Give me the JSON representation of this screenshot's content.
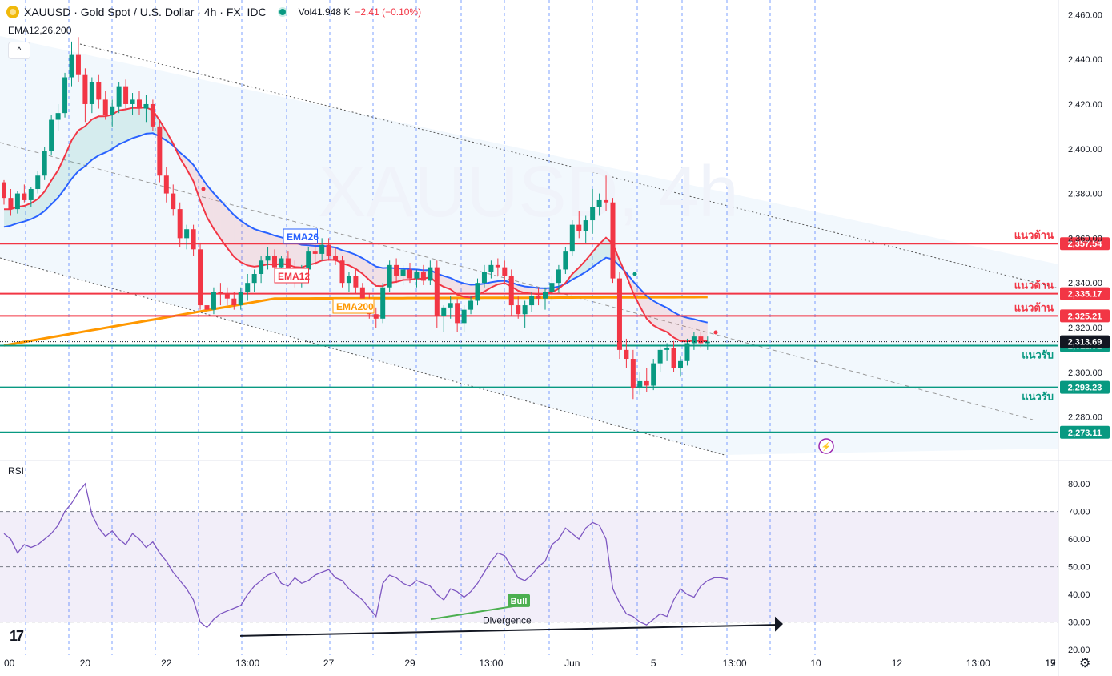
{
  "header": {
    "title": "XAUUSD · Gold Spot / U.S. Dollar · 4h · FX_IDC",
    "vol_label": "Vol",
    "vol_value": "41.948 K",
    "change": "−2.41 (−0.10%)"
  },
  "indicator_label": "EMA12,26,200",
  "collapse_glyph": "^",
  "rsi_label": "RSI",
  "logo_text": "17",
  "icons": {
    "settings": "gear-icon",
    "symbol": "gold-coin-icon",
    "flash": "lightning-icon",
    "market_status": "market-open-dot-icon"
  },
  "colors": {
    "up": "#089981",
    "down": "#f23645",
    "ema12": "#f23645",
    "ema26": "#2962ff",
    "ema200": "#ff9800",
    "resistance": "#f23645",
    "support": "#089981",
    "rsi": "#7e57c2",
    "channel": "#e3effb"
  },
  "chart_data": {
    "type": "candlestick",
    "symbol": "XAUUSD",
    "timeframe": "4h",
    "watermark": "XAUUSD, 4h",
    "price_axis": {
      "min": 2263,
      "max": 2463,
      "ticks": [
        "2,460.00",
        "2,440.00",
        "2,420.00",
        "2,400.00",
        "2,380.00",
        "2,360.00",
        "2,340.00",
        "2,320.00",
        "2,300.00",
        "2,280.00"
      ],
      "tick_values": [
        2460,
        2440,
        2420,
        2400,
        2380,
        2360,
        2340,
        2320,
        2300,
        2280
      ]
    },
    "time_axis": {
      "labels": [
        "00",
        "20",
        "22",
        "13:00",
        "27",
        "29",
        "13:00",
        "Jun",
        "5",
        "13:00",
        "10",
        "12",
        "13:00",
        "17",
        "19"
      ],
      "bars": [
        0,
        12,
        24,
        36,
        48,
        60,
        72,
        84,
        96,
        108,
        120,
        132,
        144,
        156,
        168
      ]
    },
    "current_price": "2,313.69",
    "current_value": 2313.69,
    "candles": [
      [
        2385,
        2386,
        2375,
        2378
      ],
      [
        2378,
        2382,
        2370,
        2373
      ],
      [
        2373,
        2381,
        2371,
        2380
      ],
      [
        2380,
        2384,
        2376,
        2377
      ],
      [
        2377,
        2383,
        2374,
        2382
      ],
      [
        2382,
        2390,
        2380,
        2388
      ],
      [
        2388,
        2401,
        2386,
        2399
      ],
      [
        2399,
        2415,
        2397,
        2413
      ],
      [
        2413,
        2420,
        2408,
        2416
      ],
      [
        2416,
        2434,
        2414,
        2432
      ],
      [
        2432,
        2448,
        2428,
        2442
      ],
      [
        2442,
        2450,
        2430,
        2433
      ],
      [
        2433,
        2436,
        2412,
        2420
      ],
      [
        2420,
        2432,
        2416,
        2430
      ],
      [
        2430,
        2433,
        2418,
        2422
      ],
      [
        2422,
        2426,
        2413,
        2415
      ],
      [
        2415,
        2422,
        2410,
        2419
      ],
      [
        2419,
        2430,
        2416,
        2428
      ],
      [
        2428,
        2431,
        2418,
        2420
      ],
      [
        2420,
        2425,
        2415,
        2422
      ],
      [
        2422,
        2426,
        2415,
        2418
      ],
      [
        2418,
        2424,
        2412,
        2420
      ],
      [
        2420,
        2422,
        2408,
        2410
      ],
      [
        2410,
        2413,
        2385,
        2388
      ],
      [
        2388,
        2392,
        2376,
        2380
      ],
      [
        2380,
        2384,
        2370,
        2373
      ],
      [
        2373,
        2376,
        2356,
        2360
      ],
      [
        2360,
        2366,
        2355,
        2364
      ],
      [
        2364,
        2366,
        2352,
        2355
      ],
      [
        2355,
        2358,
        2328,
        2330
      ],
      [
        2330,
        2333,
        2325,
        2328
      ],
      [
        2328,
        2338,
        2326,
        2336
      ],
      [
        2336,
        2340,
        2330,
        2335
      ],
      [
        2335,
        2338,
        2330,
        2333
      ],
      [
        2333,
        2336,
        2328,
        2330
      ],
      [
        2330,
        2338,
        2328,
        2336
      ],
      [
        2336,
        2344,
        2332,
        2340
      ],
      [
        2340,
        2346,
        2336,
        2344
      ],
      [
        2344,
        2352,
        2340,
        2350
      ],
      [
        2350,
        2356,
        2346,
        2352
      ],
      [
        2352,
        2355,
        2344,
        2347
      ],
      [
        2347,
        2352,
        2343,
        2351
      ],
      [
        2351,
        2354,
        2344,
        2346
      ],
      [
        2346,
        2350,
        2338,
        2341
      ],
      [
        2341,
        2348,
        2338,
        2346
      ],
      [
        2346,
        2356,
        2344,
        2354
      ],
      [
        2354,
        2358,
        2348,
        2353
      ],
      [
        2353,
        2360,
        2350,
        2357
      ],
      [
        2357,
        2360,
        2350,
        2352
      ],
      [
        2352,
        2356,
        2348,
        2350
      ],
      [
        2350,
        2352,
        2338,
        2340
      ],
      [
        2340,
        2345,
        2336,
        2343
      ],
      [
        2343,
        2346,
        2335,
        2338
      ],
      [
        2338,
        2340,
        2328,
        2332
      ],
      [
        2332,
        2335,
        2324,
        2326
      ],
      [
        2326,
        2329,
        2320,
        2324
      ],
      [
        2324,
        2340,
        2322,
        2338
      ],
      [
        2338,
        2350,
        2336,
        2348
      ],
      [
        2348,
        2351,
        2340,
        2343
      ],
      [
        2343,
        2348,
        2339,
        2346
      ],
      [
        2346,
        2349,
        2340,
        2342
      ],
      [
        2342,
        2346,
        2338,
        2345
      ],
      [
        2345,
        2348,
        2339,
        2341
      ],
      [
        2341,
        2350,
        2339,
        2347
      ],
      [
        2347,
        2350,
        2320,
        2325
      ],
      [
        2325,
        2330,
        2318,
        2329
      ],
      [
        2329,
        2334,
        2324,
        2331
      ],
      [
        2331,
        2333,
        2318,
        2322
      ],
      [
        2322,
        2330,
        2318,
        2328
      ],
      [
        2328,
        2334,
        2326,
        2332
      ],
      [
        2332,
        2342,
        2330,
        2340
      ],
      [
        2340,
        2348,
        2338,
        2345
      ],
      [
        2345,
        2350,
        2342,
        2348
      ],
      [
        2348,
        2351,
        2343,
        2347
      ],
      [
        2347,
        2350,
        2340,
        2343
      ],
      [
        2343,
        2346,
        2325,
        2330
      ],
      [
        2330,
        2334,
        2324,
        2326
      ],
      [
        2326,
        2332,
        2320,
        2330
      ],
      [
        2330,
        2336,
        2327,
        2334
      ],
      [
        2334,
        2338,
        2330,
        2333
      ],
      [
        2333,
        2338,
        2328,
        2336
      ],
      [
        2336,
        2343,
        2332,
        2340
      ],
      [
        2340,
        2348,
        2336,
        2346
      ],
      [
        2346,
        2356,
        2344,
        2354
      ],
      [
        2354,
        2368,
        2352,
        2366
      ],
      [
        2366,
        2372,
        2360,
        2363
      ],
      [
        2363,
        2370,
        2358,
        2368
      ],
      [
        2368,
        2382,
        2362,
        2374
      ],
      [
        2374,
        2380,
        2370,
        2377
      ],
      [
        2377,
        2388,
        2372,
        2376
      ],
      [
        2376,
        2378,
        2340,
        2342
      ],
      [
        2342,
        2345,
        2306,
        2310
      ],
      [
        2310,
        2315,
        2302,
        2306
      ],
      [
        2306,
        2310,
        2288,
        2293
      ],
      [
        2293,
        2300,
        2290,
        2296
      ],
      [
        2296,
        2302,
        2291,
        2294
      ],
      [
        2294,
        2306,
        2292,
        2304
      ],
      [
        2304,
        2312,
        2300,
        2310
      ],
      [
        2310,
        2313,
        2305,
        2311
      ],
      [
        2311,
        2314,
        2300,
        2302
      ],
      [
        2302,
        2307,
        2298,
        2305
      ],
      [
        2305,
        2315,
        2303,
        2313
      ],
      [
        2313,
        2318,
        2310,
        2316
      ],
      [
        2316,
        2318,
        2311,
        2313
      ],
      [
        2313,
        2316,
        2310,
        2313.69
      ]
    ],
    "ema": [
      {
        "name": "EMA12",
        "label_value": 2343
      },
      {
        "name": "EMA26",
        "label_value": 2358
      },
      {
        "name": "EMA200",
        "label_value": 2333
      }
    ],
    "levels": [
      {
        "label": "แนวต้าน",
        "value": 2357.54,
        "price_label": "2,357.54",
        "kind": "resistance"
      },
      {
        "label": "แนวต้าน",
        "value": 2335.17,
        "price_label": "2,335.17",
        "kind": "resistance"
      },
      {
        "label": "แนวต้าน",
        "value": 2325.21,
        "price_label": "2,325.21",
        "kind": "resistance"
      },
      {
        "label": "แนวรับ",
        "value": 2311.91,
        "price_label": "2,311.91",
        "kind": "support"
      },
      {
        "label": "แนวรับ",
        "value": 2293.23,
        "price_label": "2,293.23",
        "kind": "support"
      },
      {
        "label": "",
        "value": 2273.11,
        "price_label": "2,273.11",
        "kind": "support"
      }
    ],
    "rsi": {
      "axis": {
        "min": 18,
        "max": 87,
        "ticks": [
          "80.00",
          "70.00",
          "60.00",
          "50.00",
          "40.00",
          "30.00",
          "20.00"
        ],
        "tick_values": [
          80,
          70,
          60,
          50,
          40,
          30,
          20
        ]
      },
      "upper": 70,
      "middle": 50,
      "lower": 30,
      "values": [
        62,
        60,
        55,
        58,
        57,
        58,
        60,
        62,
        65,
        70,
        73,
        77,
        80,
        69,
        64,
        61,
        63,
        60,
        58,
        62,
        60,
        57,
        59,
        55,
        52,
        48,
        45,
        42,
        38,
        30,
        28,
        31,
        33,
        34,
        35,
        36,
        40,
        43,
        45,
        47,
        48,
        44,
        43,
        46,
        44,
        45,
        47,
        48,
        49,
        46,
        45,
        42,
        40,
        38,
        35,
        32,
        44,
        47,
        46,
        44,
        43,
        45,
        44,
        43,
        40,
        38,
        42,
        41,
        39,
        41,
        44,
        48,
        52,
        55,
        54,
        50,
        46,
        45,
        47,
        50,
        52,
        58,
        60,
        64,
        62,
        60,
        64,
        66,
        65,
        60,
        42,
        37,
        33,
        32,
        30,
        29,
        31,
        33,
        32,
        38,
        42,
        40,
        39,
        43,
        45,
        46,
        46,
        45.5
      ]
    },
    "annotations": [
      {
        "text": "Bull",
        "kind": "rsi-bull-label"
      },
      {
        "text": "Divergence",
        "kind": "rsi-text"
      },
      {
        "text": "EMA26",
        "kind": "ema-label"
      },
      {
        "text": "EMA12",
        "kind": "ema-label"
      },
      {
        "text": "EMA200",
        "kind": "ema-label"
      }
    ]
  }
}
